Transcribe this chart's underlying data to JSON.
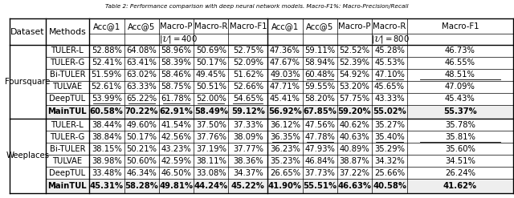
{
  "title": "Table 2: Performance comparison with deep neural network models. Macro-F1%: Macro-Precision/Recall",
  "foursquare_rows": [
    [
      "TULER-L",
      "52.88%",
      "64.08%",
      "58.96%",
      "50.69%",
      "52.75%",
      "47.36%",
      "59.11%",
      "52.52%",
      "45.28%",
      "46.73%"
    ],
    [
      "TULER-G",
      "52.41%",
      "63.41%",
      "58.39%",
      "50.17%",
      "52.09%",
      "47.67%",
      "58.94%",
      "52.39%",
      "45.53%",
      "46.55%"
    ],
    [
      "Bi-TULER",
      "51.59%",
      "63.02%",
      "58.46%",
      "49.45%",
      "51.62%",
      "49.03%",
      "60.48%",
      "54.92%",
      "47.10%",
      "48.51%"
    ],
    [
      "TULVAE",
      "52.61%",
      "63.33%",
      "58.75%",
      "50.51%",
      "52.66%",
      "47.71%",
      "59.55%",
      "53.20%",
      "45.65%",
      "47.09%"
    ],
    [
      "DeepTUL",
      "53.99%",
      "65.22%",
      "61.78%",
      "52.00%",
      "54.65%",
      "45.41%",
      "58.20%",
      "57.75%",
      "43.33%",
      "45.43%"
    ],
    [
      "MainTUL",
      "60.58%",
      "70.22%",
      "62.91%",
      "58.49%",
      "59.12%",
      "56.92%",
      "67.85%",
      "59.20%",
      "55.02%",
      "55.37%"
    ]
  ],
  "weeplaces_rows": [
    [
      "TULER-L",
      "38.44%",
      "49.60%",
      "41.54%",
      "37.50%",
      "37.33%",
      "36.12%",
      "47.56%",
      "40.62%",
      "35.27%",
      "35.78%"
    ],
    [
      "TULER-G",
      "38.84%",
      "50.17%",
      "42.56%",
      "37.76%",
      "38.09%",
      "36.35%",
      "47.78%",
      "40.63%",
      "35.40%",
      "35.81%"
    ],
    [
      "Bi-TULER",
      "38.15%",
      "50.21%",
      "43.23%",
      "37.19%",
      "37.77%",
      "36.23%",
      "47.93%",
      "40.89%",
      "35.29%",
      "35.60%"
    ],
    [
      "TULVAE",
      "38.98%",
      "50.60%",
      "42.59%",
      "38.11%",
      "38.36%",
      "35.23%",
      "46.84%",
      "38.87%",
      "34.32%",
      "34.51%"
    ],
    [
      "DeepTUL",
      "33.48%",
      "46.34%",
      "46.50%",
      "33.08%",
      "34.37%",
      "26.65%",
      "37.73%",
      "37.22%",
      "25.66%",
      "26.24%"
    ],
    [
      "MainTUL",
      "45.31%",
      "58.28%",
      "49.81%",
      "44.24%",
      "45.22%",
      "41.90%",
      "55.51%",
      "46.63%",
      "40.58%",
      "41.62%"
    ]
  ],
  "fq_underlines": {
    "2": [
      7,
      8,
      10,
      11
    ],
    "4": [
      2,
      3,
      4,
      5,
      6
    ]
  },
  "wp_underlines": {
    "1": [
      7,
      8,
      10,
      11
    ]
  },
  "font_size": 7.2,
  "header_font_size": 7.8
}
